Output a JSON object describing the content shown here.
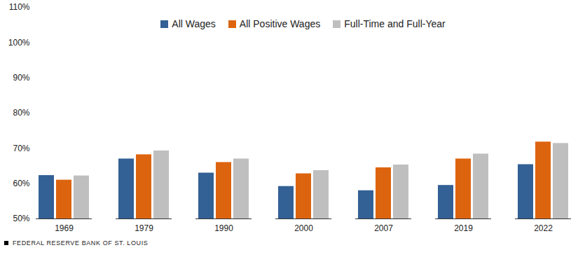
{
  "chart_data": {
    "type": "bar",
    "categories": [
      "1969",
      "1979",
      "1990",
      "2000",
      "2007",
      "2019",
      "2022"
    ],
    "series": [
      {
        "name": "All Wages",
        "color": "#336095",
        "values": [
          62.3,
          67.0,
          63.0,
          59.2,
          58.0,
          59.5,
          65.4
        ]
      },
      {
        "name": "All Positive Wages",
        "color": "#dd640f",
        "values": [
          61.0,
          68.2,
          66.0,
          62.8,
          64.5,
          67.0,
          71.8
        ]
      },
      {
        "name": "Full-Time and Full-Year",
        "color": "#bfbfbf",
        "values": [
          62.2,
          69.3,
          67.0,
          63.7,
          65.3,
          68.4,
          71.4
        ]
      }
    ],
    "ylim": [
      50,
      110
    ],
    "yticks": [
      {
        "value": 50,
        "label": "50%"
      },
      {
        "value": 60,
        "label": "60%"
      },
      {
        "value": 70,
        "label": "70%"
      },
      {
        "value": 80,
        "label": "80%"
      },
      {
        "value": 90,
        "label": "90%"
      },
      {
        "value": 100,
        "label": "100%"
      },
      {
        "value": 110,
        "label": "110%"
      }
    ],
    "grid": false,
    "legend": "top",
    "caption": "FEDERAL RESERVE BANK OF ST. LOUIS"
  }
}
